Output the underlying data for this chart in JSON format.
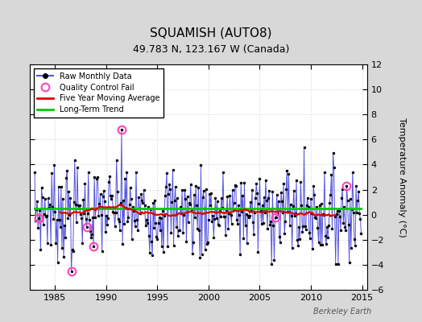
{
  "title": "SQUAMISH (AUTO8)",
  "subtitle": "49.783 N, 123.167 W (Canada)",
  "ylabel": "Temperature Anomaly (°C)",
  "watermark": "Berkeley Earth",
  "xlim": [
    1982.5,
    2015.5
  ],
  "ylim": [
    -6,
    12
  ],
  "yticks": [
    -6,
    -4,
    -2,
    0,
    2,
    4,
    6,
    8,
    10,
    12
  ],
  "xticks": [
    1985,
    1990,
    1995,
    2000,
    2005,
    2010,
    2015
  ],
  "background_color": "#d8d8d8",
  "plot_bg_color": "#ffffff",
  "raw_line_color": "#5555dd",
  "raw_marker_color": "#000000",
  "moving_avg_color": "#dd0000",
  "trend_color": "#00cc00",
  "qc_fail_color": "#ff44bb",
  "grid_color": "#cccccc",
  "title_fontsize": 11,
  "subtitle_fontsize": 9,
  "tick_fontsize": 8,
  "ylabel_fontsize": 8,
  "legend_fontsize": 7,
  "watermark_fontsize": 7,
  "start_year": 1983.0,
  "end_year": 2015.0,
  "trend_y": 0.5,
  "ma_window": 60,
  "noise_seed": 7,
  "qc_fail_times": [
    1983.42,
    1986.58,
    1988.08,
    1988.75,
    1991.5,
    2006.5,
    2013.5
  ],
  "qc_fail_values": [
    -0.3,
    -4.5,
    -1.0,
    -2.5,
    6.8,
    -0.2,
    2.3
  ]
}
